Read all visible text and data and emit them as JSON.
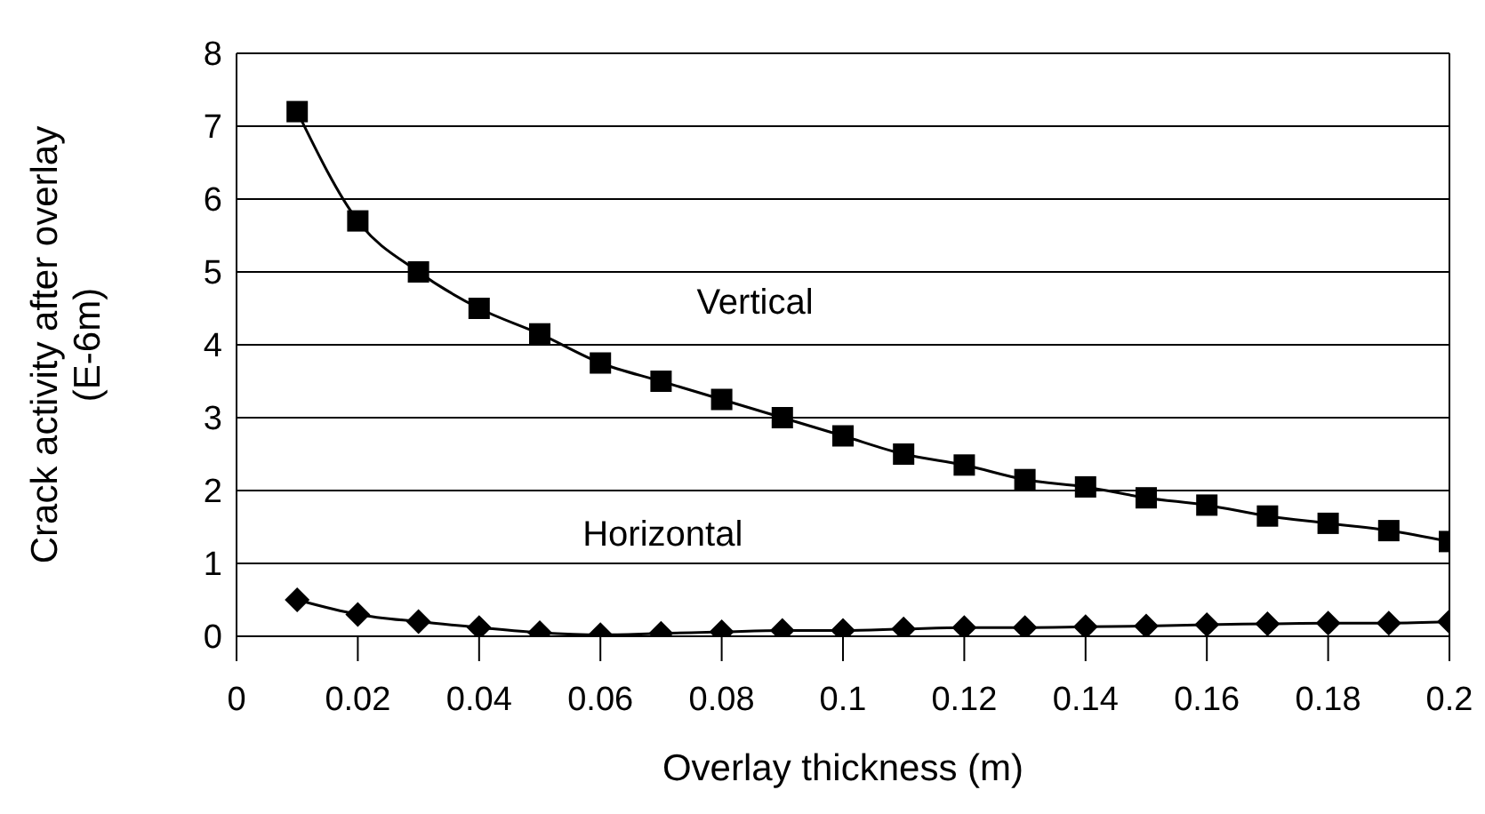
{
  "chart_data": {
    "type": "line",
    "xlabel": "Overlay thickness (m)",
    "ylabel": "Crack activity after overlay (E-6m)",
    "x": [
      0.01,
      0.02,
      0.03,
      0.04,
      0.05,
      0.06,
      0.07,
      0.08,
      0.09,
      0.1,
      0.11,
      0.12,
      0.13,
      0.14,
      0.15,
      0.16,
      0.17,
      0.18,
      0.19,
      0.2
    ],
    "series": [
      {
        "name": "Vertical",
        "color": "#000000",
        "marker": "square",
        "values": [
          7.2,
          5.7,
          5.0,
          4.5,
          4.15,
          3.75,
          3.5,
          3.25,
          3.0,
          2.75,
          2.5,
          2.35,
          2.15,
          2.05,
          1.9,
          1.8,
          1.65,
          1.55,
          1.45,
          1.3
        ]
      },
      {
        "name": "Horizontal",
        "color": "#000000",
        "marker": "diamond",
        "values": [
          0.5,
          0.3,
          0.2,
          0.12,
          0.05,
          0.02,
          0.04,
          0.06,
          0.08,
          0.08,
          0.1,
          0.12,
          0.12,
          0.13,
          0.14,
          0.16,
          0.17,
          0.18,
          0.18,
          0.2
        ]
      }
    ],
    "xlim": [
      0,
      0.2
    ],
    "xticks": [
      0,
      0.02,
      0.04,
      0.06,
      0.08,
      0.1,
      0.12,
      0.14,
      0.16,
      0.18,
      0.2
    ],
    "ylim": [
      0,
      8
    ],
    "yticks": [
      0,
      1,
      2,
      3,
      4,
      5,
      6,
      7,
      8
    ],
    "grid": "y",
    "legend": false,
    "line_style": "solid"
  }
}
